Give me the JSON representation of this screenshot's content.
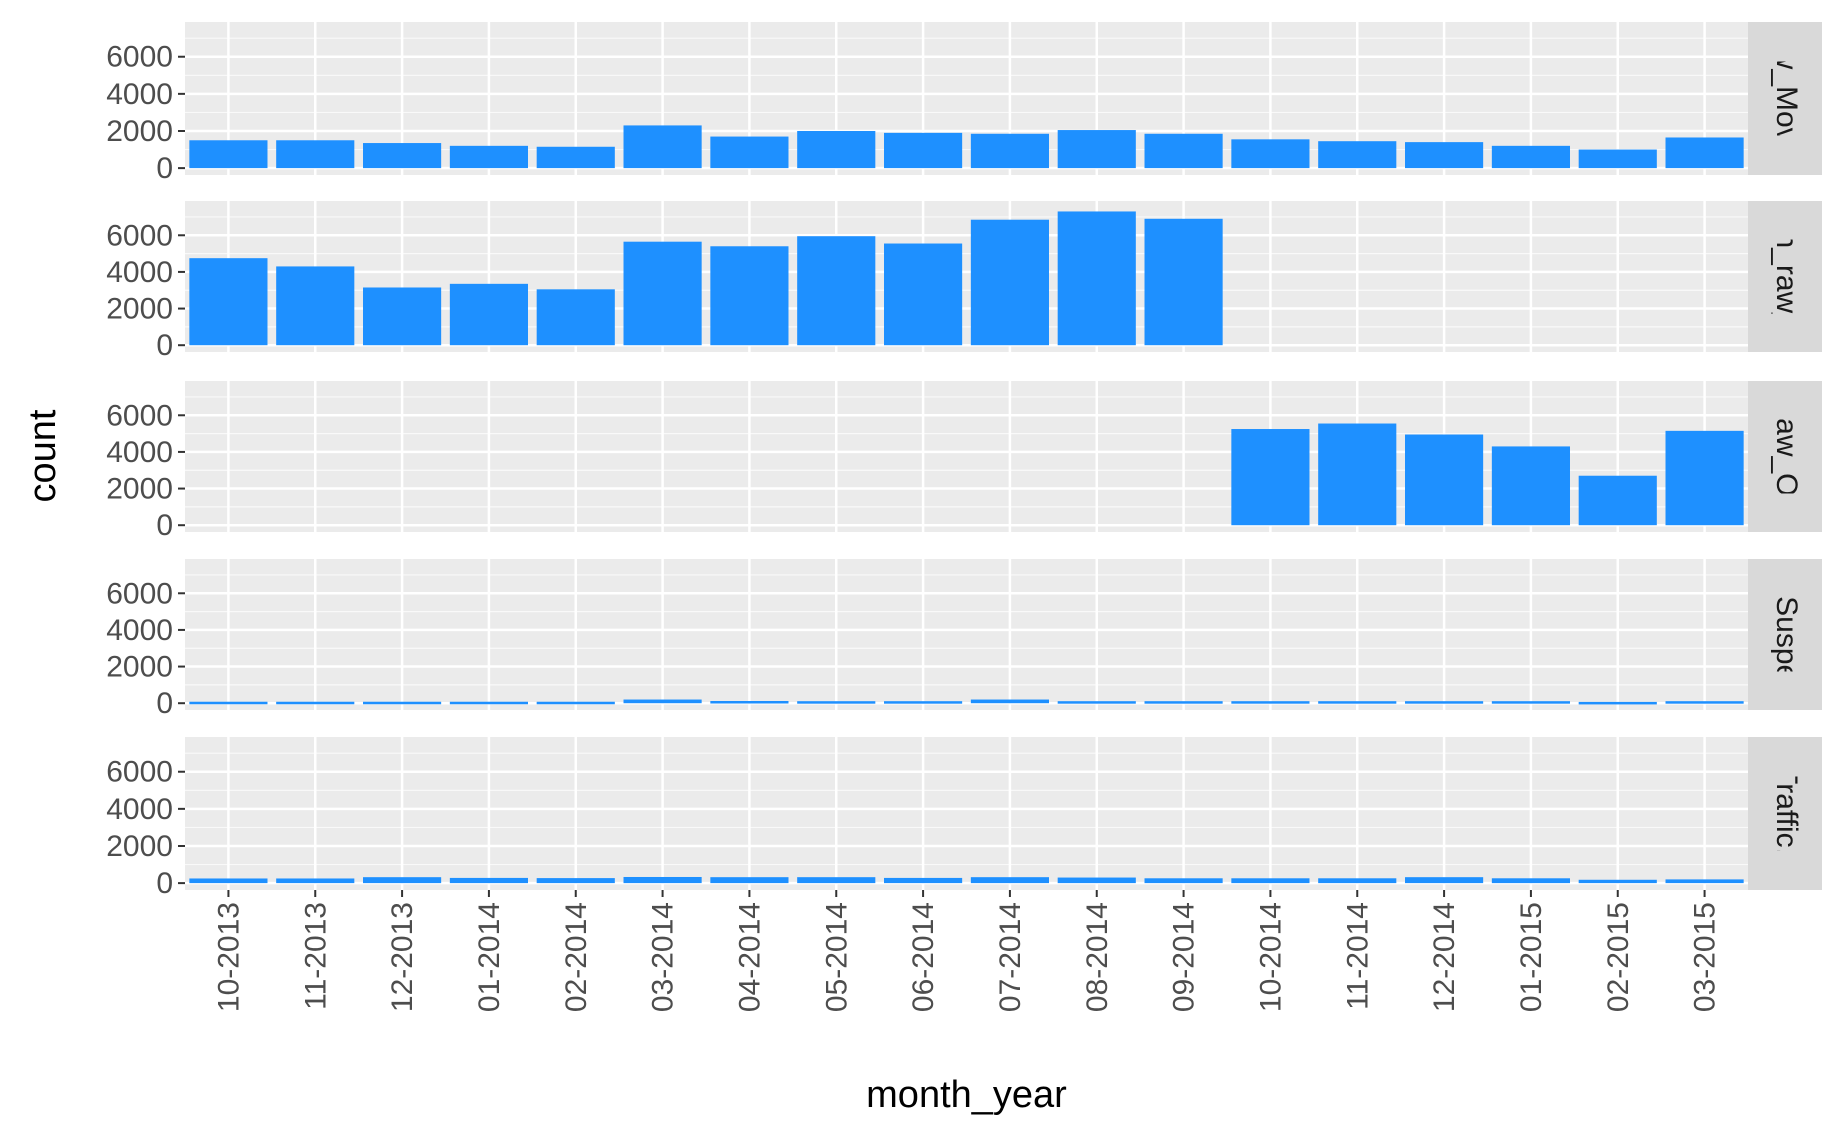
{
  "chart_data": {
    "type": "bar",
    "layout": "faceted-rows",
    "xlabel": "month_year",
    "ylabel": "count",
    "ylim": [
      0,
      7500
    ],
    "yticks": [
      0,
      2000,
      4000,
      6000
    ],
    "grid": true,
    "bar_color": "#1E90FF",
    "panel_background": "#EBEBEB",
    "strip_background": "#D9D9D9",
    "categories": [
      "10-2013",
      "11-2013",
      "12-2013",
      "01-2014",
      "02-2014",
      "03-2014",
      "04-2014",
      "05-2014",
      "06-2014",
      "07-2014",
      "08-2014",
      "09-2014",
      "10-2014",
      "11-2014",
      "12-2014",
      "01-2015",
      "02-2015",
      "03-2015"
    ],
    "facets": [
      {
        "strip": "aw_Movin",
        "values": [
          1500,
          1500,
          1350,
          1200,
          1150,
          2300,
          1700,
          2000,
          1900,
          1850,
          2050,
          1850,
          1550,
          1450,
          1400,
          1200,
          1000,
          1650
        ]
      },
      {
        "strip": "ion_raw_c",
        "values": [
          4750,
          4300,
          3150,
          3350,
          3050,
          5650,
          5400,
          5950,
          5550,
          6850,
          7300,
          6900,
          0,
          0,
          0,
          0,
          0,
          0
        ]
      },
      {
        "strip": "_raw_Oth",
        "values": [
          0,
          0,
          0,
          0,
          0,
          0,
          0,
          0,
          0,
          0,
          0,
          0,
          5250,
          5550,
          4950,
          4300,
          2700,
          5150
        ]
      },
      {
        "strip": "/_Suspen",
        "values": [
          80,
          80,
          80,
          80,
          80,
          200,
          120,
          110,
          110,
          200,
          110,
          110,
          110,
          110,
          110,
          110,
          70,
          110
        ]
      },
      {
        "strip": "_Traffic.C",
        "values": [
          250,
          250,
          320,
          280,
          270,
          330,
          320,
          320,
          280,
          320,
          300,
          260,
          260,
          260,
          320,
          260,
          180,
          200
        ]
      }
    ]
  }
}
